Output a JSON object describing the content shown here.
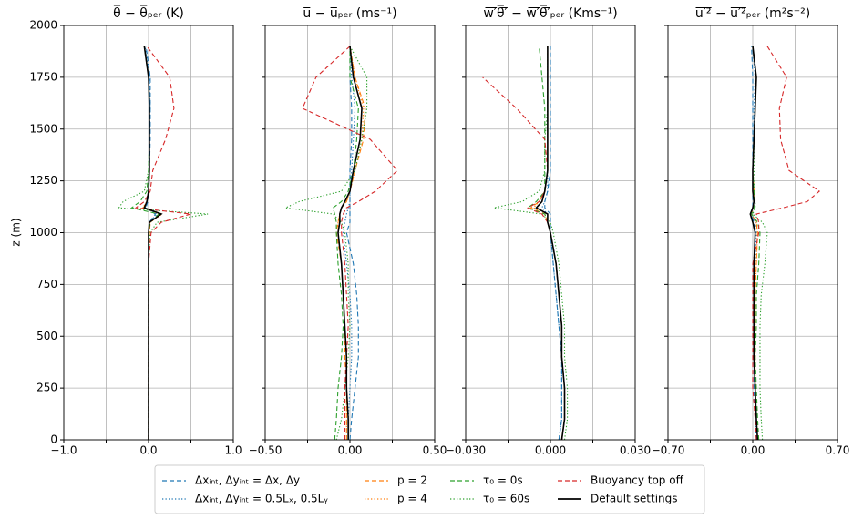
{
  "chart_data": [
    {
      "type": "line",
      "title": "θ̅ − θ̅ₚₑᵣ (K)",
      "ylabel": "z (m)",
      "y": [
        0,
        100,
        250,
        400,
        550,
        700,
        850,
        1000,
        1050,
        1090,
        1120,
        1150,
        1200,
        1300,
        1450,
        1600,
        1750,
        1900
      ],
      "xlim": [
        -1,
        1
      ],
      "xticks": [
        {
          "value": -1,
          "label": "−1.0"
        },
        {
          "value": -0.5,
          "label": null
        },
        {
          "value": 0,
          "label": "0.0"
        },
        {
          "value": 0.5,
          "label": null
        },
        {
          "value": 1,
          "label": "1.0"
        }
      ],
      "ylim": [
        0,
        2000
      ],
      "yticks": [
        0,
        250,
        500,
        750,
        1000,
        1250,
        1500,
        1750,
        2000
      ],
      "grid": true,
      "series": [
        {
          "name": "Δxᵢₙₜ, Δyᵢₙₜ = Δx, Δy",
          "color": "#1f77b4",
          "dash": "dashed",
          "values": [
            0,
            0,
            0,
            0,
            0,
            0,
            0,
            0,
            0.01,
            0.08,
            -0.03,
            -0.01,
            0,
            0.01,
            0.02,
            0.02,
            0.02,
            -0.03
          ]
        },
        {
          "name": "Δxᵢₙₜ, Δyᵢₙₜ = 0.5Lₓ, 0.5Lᵧ",
          "color": "#1f77b4",
          "dash": "dotted",
          "values": [
            0,
            0,
            0,
            0,
            0,
            0,
            0,
            0,
            0.01,
            0.1,
            -0.04,
            -0.02,
            0,
            0.01,
            0.01,
            0.02,
            0.01,
            -0.04
          ]
        },
        {
          "name": "p = 2",
          "color": "#ff7f0e",
          "dash": "dashed",
          "values": [
            0,
            0,
            0,
            0,
            0,
            0,
            0,
            0.01,
            0.02,
            0.14,
            -0.06,
            -0.02,
            0,
            0.01,
            0.01,
            0.01,
            0,
            -0.05
          ]
        },
        {
          "name": "p = 4",
          "color": "#ff7f0e",
          "dash": "dotted",
          "values": [
            0,
            0,
            0,
            0,
            0,
            0,
            0,
            0.01,
            0.02,
            0.16,
            -0.07,
            -0.02,
            0,
            0.01,
            0.01,
            0.01,
            0,
            -0.05
          ]
        },
        {
          "name": "τ₀ = 0s",
          "color": "#2ca02c",
          "dash": "dashed",
          "values": [
            0,
            0,
            0,
            0,
            0,
            0,
            0,
            0,
            0.02,
            0.12,
            -0.2,
            -0.1,
            -0.02,
            0,
            0.01,
            0.01,
            0,
            -0.05
          ]
        },
        {
          "name": "τ₀ = 60s",
          "color": "#2ca02c",
          "dash": "dotted",
          "values": [
            0,
            0,
            0,
            0,
            0,
            0,
            0,
            0.02,
            0.1,
            0.7,
            -0.35,
            -0.3,
            -0.05,
            0,
            0.01,
            0.01,
            0,
            -0.05
          ]
        },
        {
          "name": "Buoyancy top off",
          "color": "#d62728",
          "dash": "dashed",
          "values": [
            0,
            0,
            0,
            0,
            0,
            0,
            0,
            0.03,
            0.15,
            0.5,
            -0.15,
            -0.05,
            0.02,
            0.05,
            0.2,
            0.3,
            0.25,
            -0.02
          ]
        },
        {
          "name": "Default settings",
          "color": "#000000",
          "dash": "solid",
          "values": [
            0,
            0,
            0,
            0,
            0,
            0,
            0,
            0,
            0.01,
            0.15,
            -0.05,
            -0.02,
            0,
            0.01,
            0.01,
            0.01,
            0,
            -0.05
          ]
        }
      ]
    },
    {
      "type": "line",
      "title": "u̅ − u̅ₚₑᵣ (ms⁻¹)",
      "sharey": true,
      "y": [
        0,
        100,
        250,
        400,
        550,
        700,
        850,
        1000,
        1050,
        1090,
        1120,
        1150,
        1200,
        1300,
        1450,
        1600,
        1750,
        1900
      ],
      "xlim": [
        -0.5,
        0.5
      ],
      "xticks": [
        {
          "value": -0.5,
          "label": "−0.50"
        },
        {
          "value": -0.25,
          "label": null
        },
        {
          "value": 0,
          "label": "0.00"
        },
        {
          "value": 0.25,
          "label": null
        },
        {
          "value": 0.5,
          "label": "0.50"
        }
      ],
      "grid": true,
      "series": [
        {
          "color": "#1f77b4",
          "dash": "dashed",
          "values": [
            0,
            0.01,
            0.03,
            0.05,
            0.05,
            0.04,
            0.02,
            -0.02,
            0,
            0,
            0,
            0,
            0,
            0,
            0.01,
            0.01,
            0,
            0
          ]
        },
        {
          "color": "#1f77b4",
          "dash": "dotted",
          "values": [
            -0.01,
            -0.01,
            0,
            0.01,
            0.01,
            0,
            -0.02,
            -0.04,
            -0.03,
            -0.02,
            -0.01,
            0,
            0,
            0.01,
            0.02,
            0.03,
            0.01,
            0
          ]
        },
        {
          "color": "#ff7f0e",
          "dash": "dashed",
          "values": [
            -0.02,
            -0.02,
            -0.02,
            -0.03,
            -0.03,
            -0.04,
            -0.05,
            -0.08,
            -0.07,
            -0.06,
            -0.05,
            -0.02,
            0,
            0.03,
            0.08,
            0.09,
            0.03,
            0
          ]
        },
        {
          "color": "#ff7f0e",
          "dash": "dotted",
          "values": [
            -0.02,
            -0.02,
            -0.02,
            -0.02,
            -0.03,
            -0.04,
            -0.05,
            -0.07,
            -0.07,
            -0.06,
            -0.05,
            -0.02,
            0,
            0.03,
            0.07,
            0.08,
            0.03,
            0
          ]
        },
        {
          "color": "#2ca02c",
          "dash": "dashed",
          "values": [
            -0.09,
            -0.08,
            -0.07,
            -0.05,
            -0.04,
            -0.05,
            -0.07,
            -0.08,
            -0.08,
            -0.09,
            -0.1,
            -0.05,
            -0.01,
            0.02,
            0.04,
            0.05,
            0,
            0
          ]
        },
        {
          "color": "#2ca02c",
          "dash": "dotted",
          "values": [
            -0.08,
            -0.05,
            -0.03,
            -0.01,
            0,
            -0.01,
            -0.01,
            -0.03,
            -0.05,
            -0.1,
            -0.38,
            -0.3,
            -0.05,
            0.03,
            0.07,
            0.1,
            0.1,
            0
          ]
        },
        {
          "color": "#d62728",
          "dash": "dashed",
          "values": [
            -0.03,
            -0.03,
            -0.03,
            -0.02,
            -0.01,
            -0.02,
            -0.03,
            -0.05,
            -0.05,
            -0.04,
            -0.02,
            0.05,
            0.15,
            0.28,
            0.12,
            -0.28,
            -0.2,
            0
          ]
        },
        {
          "color": "#000000",
          "dash": "solid",
          "values": [
            -0.01,
            -0.01,
            -0.02,
            -0.02,
            -0.03,
            -0.04,
            -0.05,
            -0.07,
            -0.06,
            -0.06,
            -0.05,
            -0.03,
            0,
            0.02,
            0.06,
            0.07,
            0.02,
            0
          ]
        }
      ]
    },
    {
      "type": "line",
      "title": "w̅′̅θ̅′̅ − w̅′̅θ̅′̅ₚₑᵣ (Kms⁻¹)",
      "sharey": true,
      "y": [
        0,
        100,
        250,
        400,
        550,
        700,
        850,
        1000,
        1050,
        1090,
        1120,
        1150,
        1200,
        1300,
        1450,
        1600,
        1750,
        1900
      ],
      "xlim": [
        -0.03,
        0.03
      ],
      "xticks": [
        {
          "value": -0.03,
          "label": "−0.030"
        },
        {
          "value": -0.015,
          "label": null
        },
        {
          "value": 0,
          "label": "0.000"
        },
        {
          "value": 0.015,
          "label": null
        },
        {
          "value": 0.03,
          "label": "0.030"
        }
      ],
      "grid": true,
      "series": [
        {
          "color": "#1f77b4",
          "dash": "dashed",
          "values": [
            0.003,
            0.004,
            0.004,
            0.004,
            0.003,
            0.002,
            0.001,
            0,
            0,
            0,
            -0.002,
            -0.002,
            -0.001,
            0,
            0,
            0,
            0,
            0
          ]
        },
        {
          "color": "#1f77b4",
          "dash": "dotted",
          "values": [
            0.003,
            0.004,
            0.004,
            0.004,
            0.003,
            0.002,
            0.001,
            0,
            -0.001,
            -0.001,
            -0.003,
            -0.002,
            -0.001,
            -0.001,
            -0.001,
            -0.001,
            -0.001,
            -0.001
          ]
        },
        {
          "color": "#ff7f0e",
          "dash": "dashed",
          "values": [
            0.004,
            0.005,
            0.005,
            0.004,
            0.004,
            0.003,
            0.002,
            0,
            -0.001,
            -0.002,
            -0.007,
            -0.004,
            -0.002,
            -0.001,
            -0.001,
            -0.001,
            -0.001,
            -0.001
          ]
        },
        {
          "color": "#ff7f0e",
          "dash": "dotted",
          "values": [
            0.004,
            0.005,
            0.005,
            0.004,
            0.004,
            0.003,
            0.002,
            0,
            -0.001,
            -0.002,
            -0.006,
            -0.004,
            -0.002,
            -0.001,
            -0.001,
            -0.001,
            -0.001,
            -0.001
          ]
        },
        {
          "color": "#2ca02c",
          "dash": "dashed",
          "values": [
            0.004,
            0.005,
            0.005,
            0.004,
            0.004,
            0.003,
            0.002,
            0,
            -0.001,
            -0.002,
            -0.008,
            -0.005,
            -0.002,
            -0.002,
            -0.002,
            -0.002,
            -0.003,
            -0.004
          ]
        },
        {
          "color": "#2ca02c",
          "dash": "dotted",
          "values": [
            0.005,
            0.006,
            0.006,
            0.005,
            0.005,
            0.004,
            0.003,
            0.001,
            0,
            -0.003,
            -0.02,
            -0.01,
            -0.004,
            -0.002,
            -0.002,
            -0.001,
            -0.001,
            -0.001
          ]
        },
        {
          "color": "#d62728",
          "dash": "dashed",
          "values": [
            0.004,
            0.005,
            0.005,
            0.004,
            0.004,
            0.003,
            0.002,
            0,
            -0.001,
            -0.003,
            -0.008,
            -0.004,
            -0.002,
            -0.001,
            -0.002,
            -0.012,
            -0.024,
            null
          ]
        },
        {
          "color": "#000000",
          "dash": "solid",
          "values": [
            0.004,
            0.005,
            0.005,
            0.004,
            0.004,
            0.003,
            0.002,
            0,
            -0.001,
            -0.001,
            -0.005,
            -0.003,
            -0.002,
            -0.001,
            -0.001,
            -0.001,
            -0.001,
            -0.001
          ]
        }
      ]
    },
    {
      "type": "line",
      "title": "u̅′̅²̅ − u̅′̅²̅ₚₑᵣ (m²s⁻²)",
      "sharey": true,
      "y": [
        0,
        100,
        250,
        400,
        550,
        700,
        850,
        1000,
        1050,
        1090,
        1120,
        1150,
        1200,
        1300,
        1450,
        1600,
        1750,
        1900
      ],
      "xlim": [
        -0.7,
        0.7
      ],
      "xticks": [
        {
          "value": -0.7,
          "label": "−0.70"
        },
        {
          "value": -0.35,
          "label": null
        },
        {
          "value": 0,
          "label": "0.00"
        },
        {
          "value": 0.35,
          "label": null
        },
        {
          "value": 0.7,
          "label": "0.70"
        }
      ],
      "grid": true,
      "series": [
        {
          "color": "#1f77b4",
          "dash": "dashed",
          "values": [
            0.03,
            0.02,
            0.01,
            0.01,
            0.01,
            0.01,
            0.01,
            0.02,
            0.01,
            -0.01,
            0,
            0,
            0,
            0,
            0,
            0,
            0,
            -0.01
          ]
        },
        {
          "color": "#1f77b4",
          "dash": "dotted",
          "values": [
            0.03,
            0.02,
            0.02,
            0.01,
            0.01,
            0.01,
            0.02,
            0.03,
            0.02,
            -0.01,
            0,
            0.01,
            0,
            0,
            0.01,
            0.01,
            0.02,
            0
          ]
        },
        {
          "color": "#ff7f0e",
          "dash": "dashed",
          "values": [
            0.04,
            0.03,
            0.02,
            0.02,
            0.02,
            0.02,
            0.03,
            0.04,
            0.03,
            -0.01,
            0,
            0.01,
            0.01,
            0,
            0.01,
            0.02,
            0.03,
            0
          ]
        },
        {
          "color": "#ff7f0e",
          "dash": "dotted",
          "values": [
            0.04,
            0.03,
            0.02,
            0.02,
            0.02,
            0.02,
            0.03,
            0.04,
            0.03,
            -0.01,
            0,
            0.01,
            0.01,
            0,
            0.01,
            0.02,
            0.03,
            0
          ]
        },
        {
          "color": "#2ca02c",
          "dash": "dashed",
          "values": [
            0.05,
            0.04,
            0.03,
            0.02,
            0.03,
            0.03,
            0.05,
            0.06,
            0.04,
            -0.01,
            0.01,
            0.01,
            0.01,
            0,
            0.01,
            0.02,
            0.03,
            0
          ]
        },
        {
          "color": "#2ca02c",
          "dash": "dotted",
          "values": [
            0.08,
            0.07,
            0.06,
            0.06,
            0.06,
            0.07,
            0.1,
            0.12,
            0.08,
            0,
            0.02,
            0.02,
            0.01,
            0.01,
            0.01,
            0.02,
            0.03,
            0
          ]
        },
        {
          "color": "#d62728",
          "dash": "dashed",
          "values": [
            0.03,
            0.02,
            0,
            0,
            0,
            0,
            0,
            0.05,
            0.05,
            0.03,
            0.25,
            0.45,
            0.55,
            0.3,
            0.23,
            0.22,
            0.28,
            0.12
          ]
        },
        {
          "color": "#000000",
          "dash": "solid",
          "values": [
            0.04,
            0.03,
            0.02,
            0.01,
            0.01,
            0.01,
            0.01,
            0.02,
            0,
            -0.02,
            0,
            0.01,
            0,
            0,
            0.01,
            0.02,
            0.03,
            0
          ]
        }
      ]
    }
  ]
}
